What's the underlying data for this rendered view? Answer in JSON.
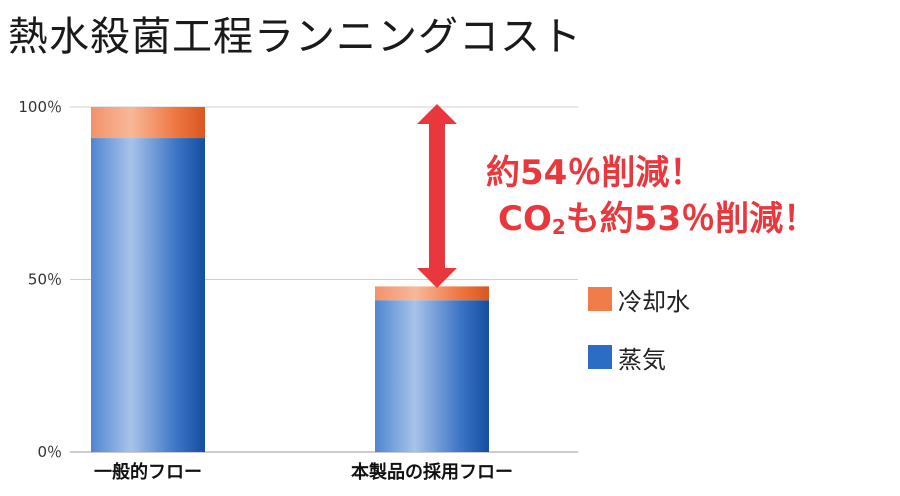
{
  "title": "熱水殺菌工程ランニングコスト",
  "callout": {
    "line1": "約54％削減！",
    "line2_prefix": "CO",
    "line2_sub": "2",
    "line2_suffix": "も約53％削減！",
    "color": "#e8383d"
  },
  "legend": [
    {
      "label": "冷却水",
      "color": "#f07c4a"
    },
    {
      "label": "蒸気",
      "color": "#2b6cc4"
    }
  ],
  "chart_data": {
    "type": "bar",
    "stacked": true,
    "categories": [
      "一般的フロー",
      "本製品の採用フロー"
    ],
    "series": [
      {
        "name": "蒸気",
        "values": [
          91,
          44
        ],
        "color": "#2b6cc4"
      },
      {
        "name": "冷却水",
        "values": [
          9,
          4
        ],
        "color": "#f07c4a"
      }
    ],
    "yticks": [
      "0％",
      "50％",
      "100％"
    ],
    "ytick_values": [
      0,
      50,
      100
    ],
    "ylim": [
      0,
      100
    ],
    "grid": true,
    "legend_position": "right"
  }
}
